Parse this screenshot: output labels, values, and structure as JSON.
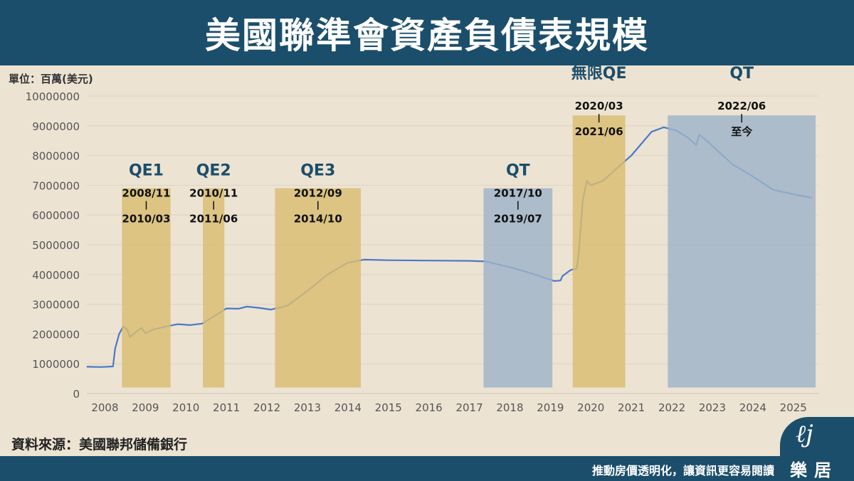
{
  "header": {
    "title": "美國聯準會資產負債表規模"
  },
  "footer": {
    "source": "資料來源：美國聯邦儲備銀行",
    "slogan": "推動房價透明化，讓資訊更容易閱讀",
    "logo_text": "樂居",
    "logo_mark": "ℓj"
  },
  "colors": {
    "header": "#1b4e6b",
    "background": "#ede3d3",
    "line": "#4a78c8",
    "qe_band": "#d9bd72",
    "qt_band": "#9db3c8",
    "label": "#1b4e6b"
  },
  "chart_data": {
    "type": "line",
    "title": "美國聯準會資產負債表規模",
    "ylabel": "單位：百萬(美元)",
    "ylim": [
      0,
      10000000
    ],
    "yticks": [
      0,
      1000000,
      2000000,
      3000000,
      4000000,
      5000000,
      6000000,
      7000000,
      8000000,
      9000000,
      10000000
    ],
    "xticks": [
      "2008",
      "2009",
      "2010",
      "2011",
      "2012",
      "2013",
      "2014",
      "2015",
      "2016",
      "2017",
      "2018",
      "2019",
      "2020",
      "2021",
      "2022",
      "2023",
      "2024",
      "2025"
    ],
    "grid": "horizontal",
    "series": [
      {
        "values": [
          [
            2008.05,
            900000
          ],
          [
            2008.4,
            890000
          ],
          [
            2008.7,
            910000
          ],
          [
            2008.75,
            1500000
          ],
          [
            2008.85,
            2000000
          ],
          [
            2008.95,
            2250000
          ],
          [
            2009.05,
            2150000
          ],
          [
            2009.12,
            1900000
          ],
          [
            2009.3,
            2100000
          ],
          [
            2009.4,
            2200000
          ],
          [
            2009.5,
            2030000
          ],
          [
            2009.7,
            2150000
          ],
          [
            2010.0,
            2250000
          ],
          [
            2010.3,
            2330000
          ],
          [
            2010.6,
            2300000
          ],
          [
            2010.9,
            2350000
          ],
          [
            2011.2,
            2600000
          ],
          [
            2011.5,
            2860000
          ],
          [
            2011.8,
            2850000
          ],
          [
            2012.0,
            2920000
          ],
          [
            2012.3,
            2880000
          ],
          [
            2012.6,
            2820000
          ],
          [
            2012.8,
            2880000
          ],
          [
            2013.0,
            2950000
          ],
          [
            2013.5,
            3450000
          ],
          [
            2014.0,
            4000000
          ],
          [
            2014.5,
            4400000
          ],
          [
            2014.9,
            4500000
          ],
          [
            2015.5,
            4480000
          ],
          [
            2016.5,
            4470000
          ],
          [
            2017.5,
            4460000
          ],
          [
            2017.9,
            4440000
          ],
          [
            2018.5,
            4250000
          ],
          [
            2019.0,
            4050000
          ],
          [
            2019.6,
            3780000
          ],
          [
            2019.75,
            3800000
          ],
          [
            2019.8,
            3950000
          ],
          [
            2020.0,
            4150000
          ],
          [
            2020.15,
            4200000
          ],
          [
            2020.2,
            4700000
          ],
          [
            2020.3,
            6500000
          ],
          [
            2020.4,
            7150000
          ],
          [
            2020.5,
            7000000
          ],
          [
            2020.8,
            7150000
          ],
          [
            2021.0,
            7400000
          ],
          [
            2021.5,
            8000000
          ],
          [
            2022.0,
            8800000
          ],
          [
            2022.3,
            8950000
          ],
          [
            2022.6,
            8850000
          ],
          [
            2022.9,
            8600000
          ],
          [
            2023.1,
            8350000
          ],
          [
            2023.18,
            8700000
          ],
          [
            2023.4,
            8450000
          ],
          [
            2024.0,
            7700000
          ],
          [
            2024.5,
            7300000
          ],
          [
            2025.0,
            6850000
          ],
          [
            2025.5,
            6700000
          ],
          [
            2025.95,
            6580000
          ]
        ]
      }
    ],
    "annotations": [
      {
        "label": "QE1",
        "start": "2008/11",
        "end": "2010/03",
        "kind": "qe",
        "x0": 2008.92,
        "x1": 2010.12,
        "top": 6900000
      },
      {
        "label": "QE2",
        "start": "2010/11",
        "end": "2011/06",
        "kind": "qe",
        "x0": 2010.92,
        "x1": 2011.45,
        "top": 6900000
      },
      {
        "label": "QE3",
        "start": "2012/09",
        "end": "2014/10",
        "kind": "qe",
        "x0": 2012.7,
        "x1": 2014.82,
        "top": 6900000
      },
      {
        "label": "QT",
        "start": "2017/10",
        "end": "2019/07",
        "kind": "qt",
        "x0": 2017.85,
        "x1": 2019.55,
        "top": 6900000
      },
      {
        "label": "無限QE",
        "start": "2020/03",
        "end": "2021/06",
        "kind": "qe",
        "x0": 2020.05,
        "x1": 2021.35,
        "top": 9350000
      },
      {
        "label": "QT",
        "start": "2022/06",
        "end": "至今",
        "kind": "qt",
        "x0": 2022.4,
        "x1": 2026.05,
        "top": 9350000
      }
    ]
  }
}
